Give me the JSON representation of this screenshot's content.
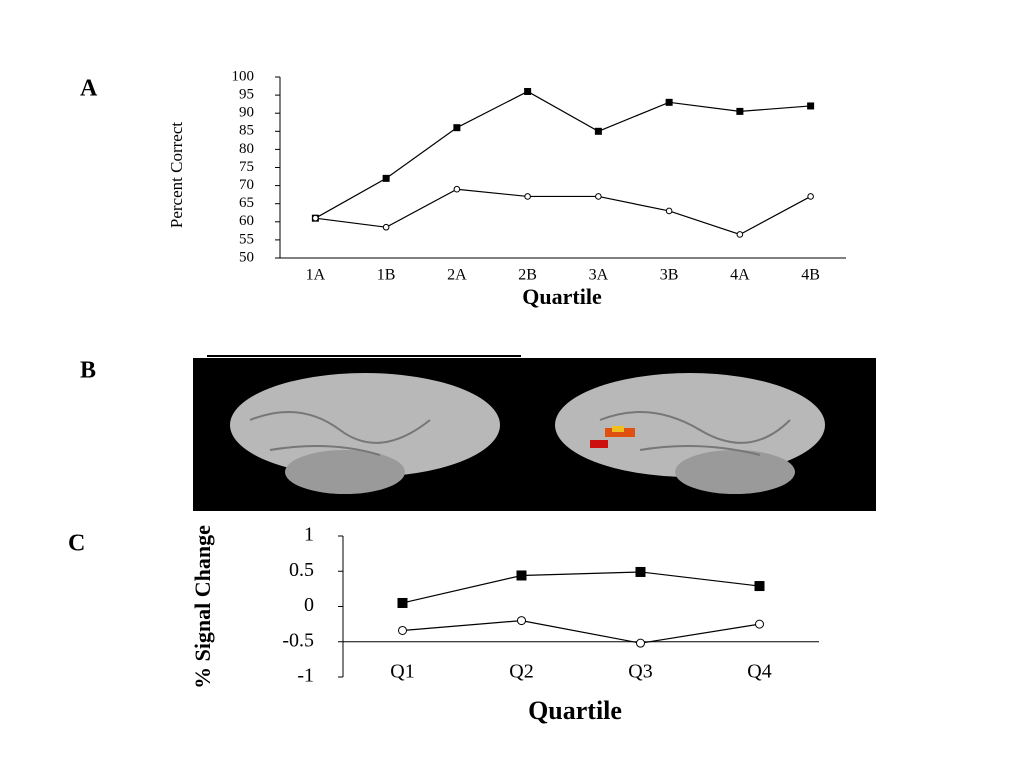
{
  "chart_data": [
    {
      "type": "line",
      "panel": "A",
      "ylabel": "Percent Correct",
      "xlabel": "Quartile",
      "categories": [
        "1A",
        "1B",
        "2A",
        "2B",
        "3A",
        "3B",
        "4A",
        "4B"
      ],
      "series": [
        {
          "color": "#000000",
          "marker": "square",
          "values": [
            61,
            72,
            86,
            96,
            85,
            93,
            90.5,
            92
          ]
        },
        {
          "color": "#000000",
          "marker": "circle",
          "values": [
            61,
            58.5,
            69,
            67,
            67,
            63,
            56.5,
            67
          ]
        }
      ],
      "ylim": [
        50,
        100
      ],
      "yticks": [
        50,
        55,
        60,
        65,
        70,
        75,
        80,
        85,
        90,
        95,
        100
      ],
      "xaxis_crosses": 50
    },
    {
      "type": "line",
      "panel": "C",
      "ylabel": "% Signal Change",
      "xlabel": "Quartile",
      "categories": [
        "Q1",
        "Q2",
        "Q3",
        "Q4"
      ],
      "series": [
        {
          "color": "#000000",
          "marker": "square",
          "values": [
            0.05,
            0.44,
            0.49,
            0.29
          ]
        },
        {
          "color": "#000000",
          "marker": "circle",
          "values": [
            -0.34,
            -0.2,
            -0.52,
            -0.25
          ]
        }
      ],
      "ylim": [
        -1,
        1
      ],
      "yticks": [
        -1,
        -0.5,
        0,
        0.5,
        1
      ],
      "xaxis_crosses": -0.5
    }
  ],
  "figure_b": {
    "panel": "B"
  }
}
